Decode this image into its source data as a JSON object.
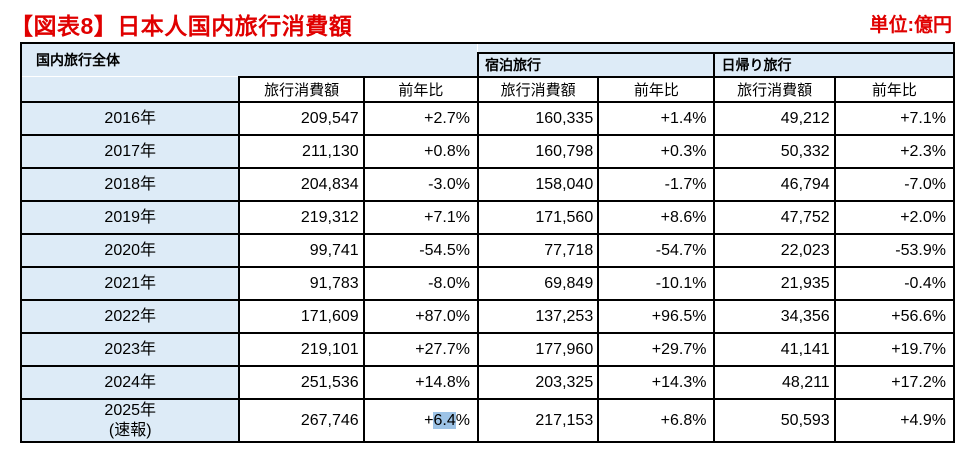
{
  "title": "【図表8】日本人国内旅行消費額",
  "unit_label": "単位:億円",
  "colors": {
    "accent_red": "#e00000",
    "header_blue": "#ddebf7",
    "selection_blue": "#9dc3e6"
  },
  "table": {
    "group_headers": {
      "overall": "国内旅行全体",
      "overnight": "宿泊旅行",
      "daytrip": "日帰り旅行"
    },
    "col_headers": {
      "consumption": "旅行消費額",
      "yoy": "前年比"
    },
    "selection": {
      "row": 9,
      "col": "total_yoy",
      "text": "6.4"
    },
    "rows": [
      {
        "year": "2016年",
        "total": "209,547",
        "total_yoy": "+2.7%",
        "overnight": "160,335",
        "overnight_yoy": "+1.4%",
        "daytrip": "49,212",
        "daytrip_yoy": "+7.1%"
      },
      {
        "year": "2017年",
        "total": "211,130",
        "total_yoy": "+0.8%",
        "overnight": "160,798",
        "overnight_yoy": "+0.3%",
        "daytrip": "50,332",
        "daytrip_yoy": "+2.3%"
      },
      {
        "year": "2018年",
        "total": "204,834",
        "total_yoy": "-3.0%",
        "overnight": "158,040",
        "overnight_yoy": "-1.7%",
        "daytrip": "46,794",
        "daytrip_yoy": "-7.0%"
      },
      {
        "year": "2019年",
        "total": "219,312",
        "total_yoy": "+7.1%",
        "overnight": "171,560",
        "overnight_yoy": "+8.6%",
        "daytrip": "47,752",
        "daytrip_yoy": "+2.0%"
      },
      {
        "year": "2020年",
        "total": "99,741",
        "total_yoy": "-54.5%",
        "overnight": "77,718",
        "overnight_yoy": "-54.7%",
        "daytrip": "22,023",
        "daytrip_yoy": "-53.9%"
      },
      {
        "year": "2021年",
        "total": "91,783",
        "total_yoy": "-8.0%",
        "overnight": "69,849",
        "overnight_yoy": "-10.1%",
        "daytrip": "21,935",
        "daytrip_yoy": "-0.4%"
      },
      {
        "year": "2022年",
        "total": "171,609",
        "total_yoy": "+87.0%",
        "overnight": "137,253",
        "overnight_yoy": "+96.5%",
        "daytrip": "34,356",
        "daytrip_yoy": "+56.6%"
      },
      {
        "year": "2023年",
        "total": "219,101",
        "total_yoy": "+27.7%",
        "overnight": "177,960",
        "overnight_yoy": "+29.7%",
        "daytrip": "41,141",
        "daytrip_yoy": "+19.7%"
      },
      {
        "year": "2024年",
        "total": "251,536",
        "total_yoy": "+14.8%",
        "overnight": "203,325",
        "overnight_yoy": "+14.3%",
        "daytrip": "48,211",
        "daytrip_yoy": "+17.2%"
      },
      {
        "year": "2025年",
        "year_note": "(速報)",
        "total": "267,746",
        "total_yoy": "+6.4%",
        "overnight": "217,153",
        "overnight_yoy": "+6.8%",
        "daytrip": "50,593",
        "daytrip_yoy": "+4.9%"
      }
    ]
  }
}
